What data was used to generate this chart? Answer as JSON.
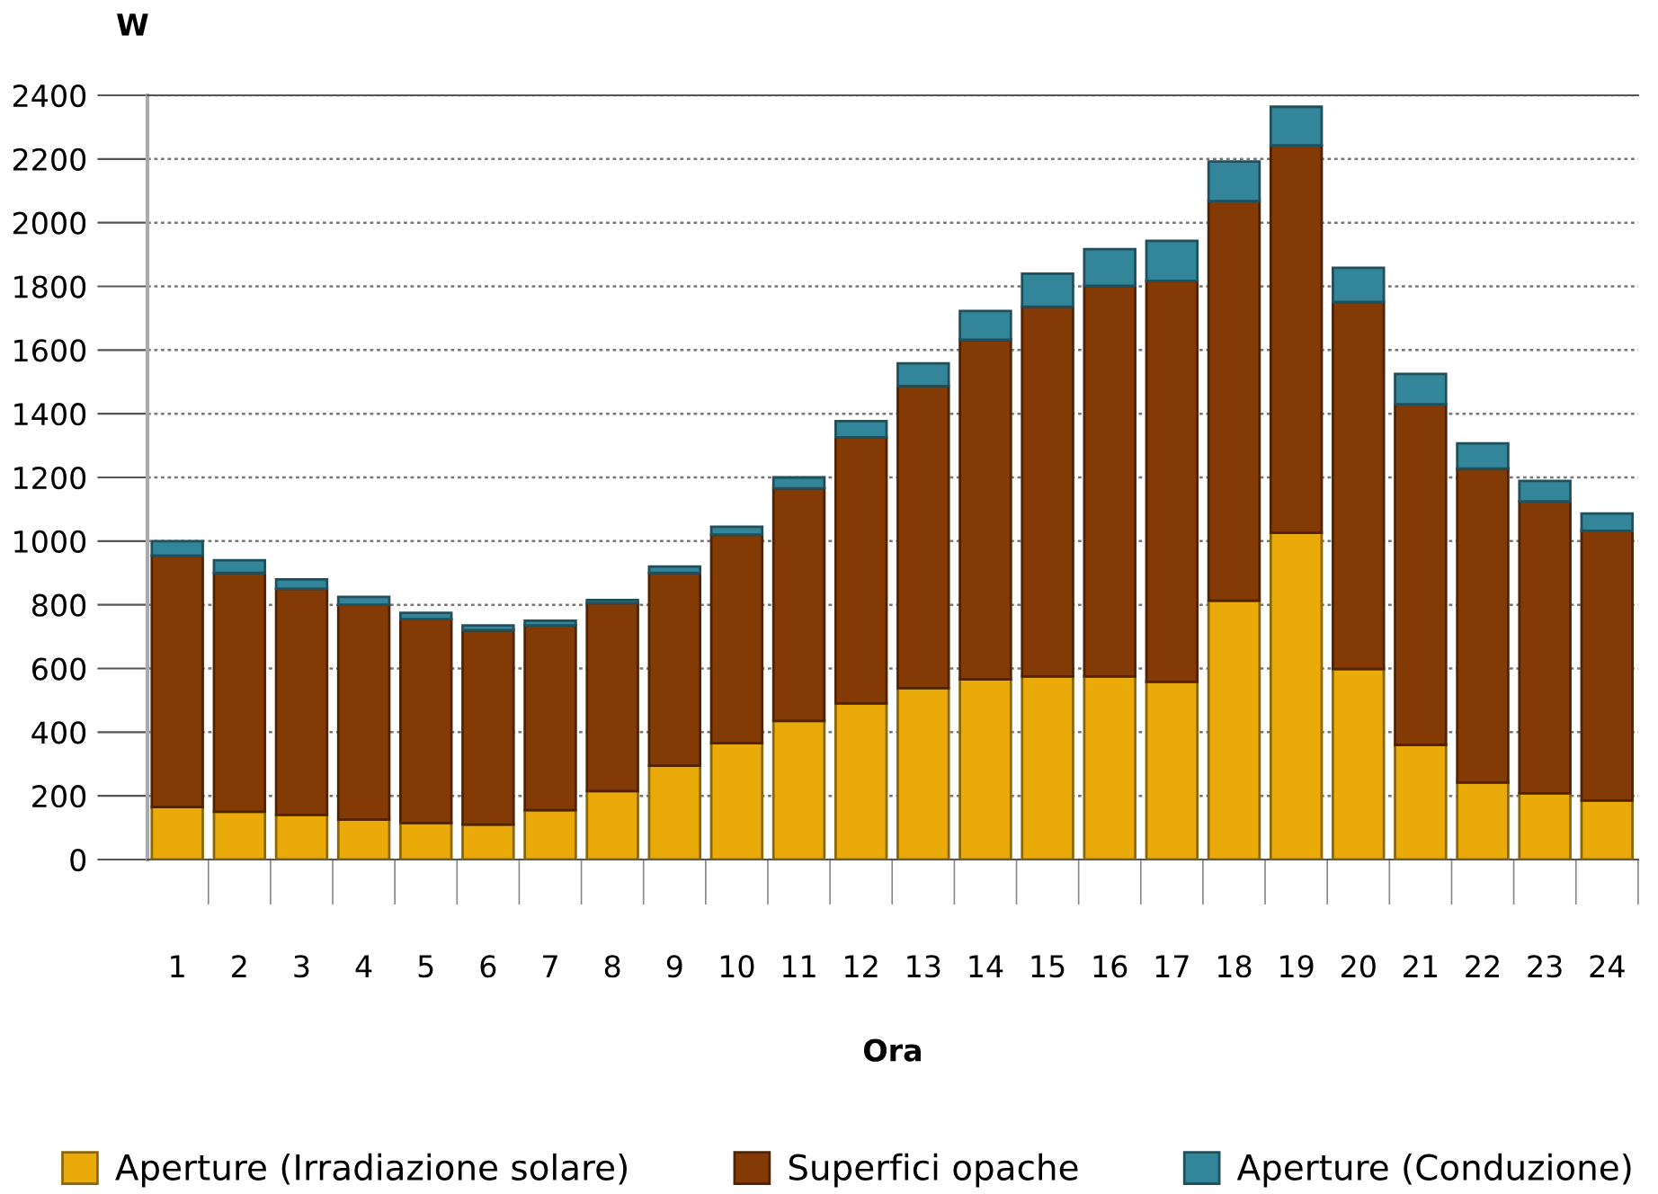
{
  "chart_data": {
    "type": "bar",
    "stacked": true,
    "xlabel": "Ora",
    "ylabel": "W",
    "categories": [
      "1",
      "2",
      "3",
      "4",
      "5",
      "6",
      "7",
      "8",
      "9",
      "10",
      "11",
      "12",
      "13",
      "14",
      "15",
      "16",
      "17",
      "18",
      "19",
      "20",
      "21",
      "22",
      "23",
      "24"
    ],
    "series": [
      {
        "name": "Aperture (Irradiazione solare)",
        "color": "#eaab0a",
        "values": [
          165,
          150,
          140,
          125,
          115,
          110,
          155,
          215,
          295,
          365,
          435,
          490,
          538,
          566,
          575,
          575,
          558,
          813,
          1026,
          598,
          360,
          242,
          208,
          185
        ]
      },
      {
        "name": "Superfici opache",
        "color": "#843a05",
        "values": [
          790,
          750,
          710,
          675,
          640,
          610,
          580,
          590,
          605,
          655,
          731,
          836,
          949,
          1066,
          1161,
          1227,
          1259,
          1255,
          1217,
          1153,
          1070,
          986,
          917,
          847
        ]
      },
      {
        "name": "Aperture (Conduzione)",
        "color": "#338599",
        "values": [
          45,
          40,
          30,
          25,
          20,
          15,
          15,
          10,
          20,
          25,
          34,
          51,
          71,
          91,
          104,
          115,
          126,
          124,
          121,
          107,
          95,
          79,
          64,
          55
        ]
      }
    ],
    "ylim": [
      0,
      2400
    ],
    "yticks": [
      0,
      200,
      400,
      600,
      800,
      1000,
      1200,
      1400,
      1600,
      1800,
      2000,
      2200,
      2400
    ],
    "grid": "y",
    "legend": "bottom"
  }
}
